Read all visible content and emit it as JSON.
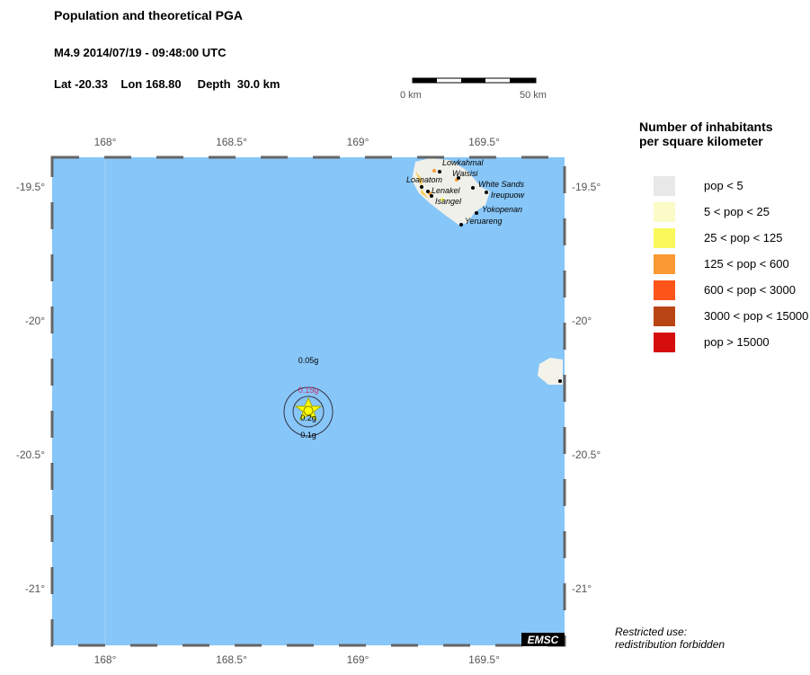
{
  "header": {
    "title": "Population and theoretical PGA",
    "event": "M4.9  2014/07/19 - 09:48:00 UTC",
    "location": "Lat -20.33    Lon 168.80     Depth  30.0 km"
  },
  "scalebar": {
    "start": "0 km",
    "end": "50 km"
  },
  "map": {
    "lon_ticks": [
      "168°",
      "168.5°",
      "169°",
      "169.5°"
    ],
    "lat_ticks": [
      "-19.5°",
      "-20°",
      "-20.5°",
      "-21°"
    ],
    "ocean_color": "#87c6f8",
    "epicenter": {
      "lat": -20.33,
      "lon": 168.8
    },
    "pga_labels": [
      "0.05g",
      "0.15g",
      "0.2g",
      "0.1g"
    ],
    "places": [
      "Lowkahmal",
      "Waisisi",
      "Loanatom",
      "Lenakel",
      "Isangel",
      "White Sands",
      "Ireupuow",
      "Yokopenan",
      "Yeruareng"
    ],
    "badge": "EMSC"
  },
  "legend": {
    "title1": "Number of inhabitants",
    "title2": "per square kilometer",
    "items": [
      {
        "label": "pop < 5",
        "color": "#e8e8e8"
      },
      {
        "label": "5 < pop < 25",
        "color": "#fbfbc8"
      },
      {
        "label": "25 < pop < 125",
        "color": "#f9f95c"
      },
      {
        "label": "125 < pop < 600",
        "color": "#fb9a32"
      },
      {
        "label": "600 < pop < 3000",
        "color": "#fc5419"
      },
      {
        "label": "3000 < pop < 15000",
        "color": "#b84513"
      },
      {
        "label": "pop > 15000",
        "color": "#d60d0d"
      }
    ]
  },
  "footer": {
    "line1": "Restricted use:",
    "line2": "redistribution forbidden"
  }
}
